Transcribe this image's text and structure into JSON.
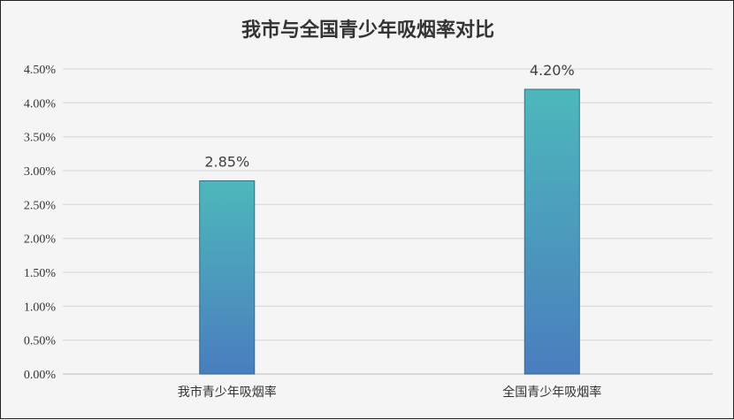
{
  "chart_data": {
    "type": "bar",
    "title": "我市与全国青少年吸烟率对比",
    "categories": [
      "我市青少年吸烟率",
      "全国青少年吸烟率"
    ],
    "values": [
      2.85,
      4.2
    ],
    "data_labels": [
      "2.85%",
      "4.20%"
    ],
    "value_unit": "%",
    "ylim": [
      0,
      4.5
    ],
    "yticks": [
      0,
      0.5,
      1.0,
      1.5,
      2.0,
      2.5,
      3.0,
      3.5,
      4.0,
      4.5
    ],
    "ytick_labels": [
      "0.00%",
      "0.50%",
      "1.00%",
      "1.50%",
      "2.00%",
      "2.50%",
      "3.00%",
      "3.50%",
      "4.00%",
      "4.50%"
    ],
    "grid": true,
    "legend": "none",
    "colors": {
      "bar_top": "#4db8bc",
      "bar_bottom": "#4a7dbe",
      "bar_border": "#2f6f8a",
      "grid": "#dddddd",
      "background": "#f5f5f5"
    }
  }
}
